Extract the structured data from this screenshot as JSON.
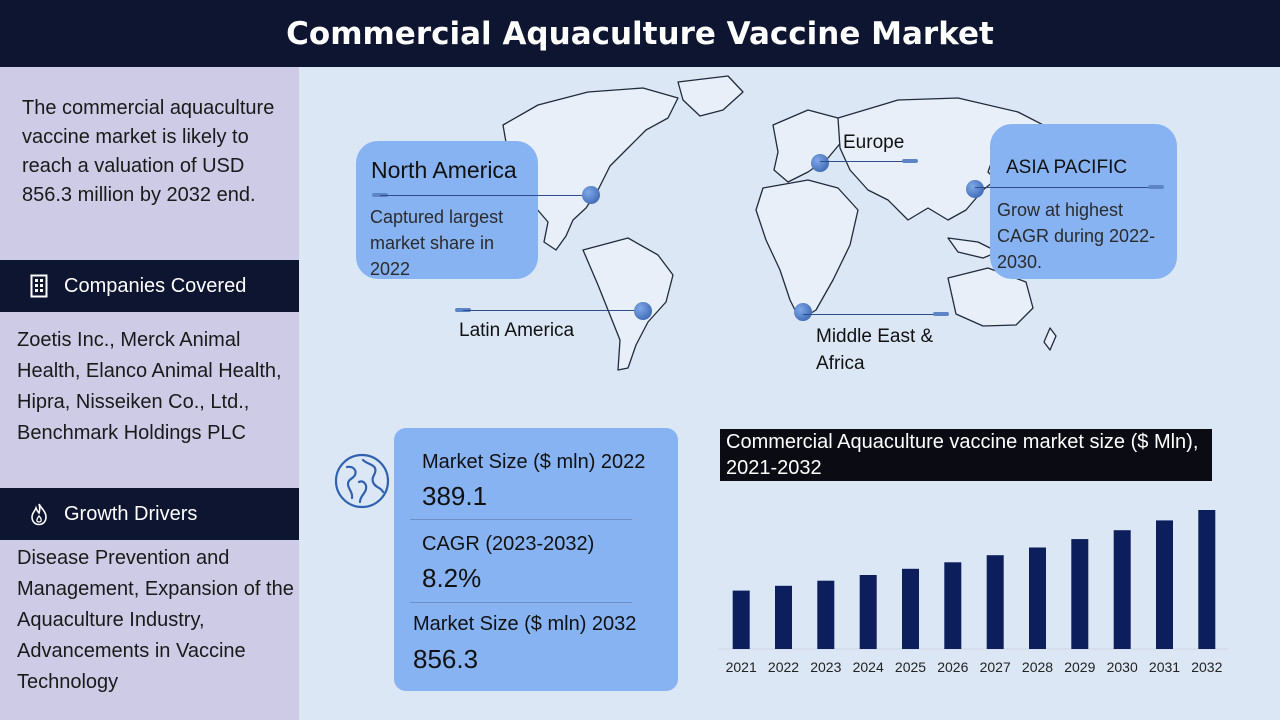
{
  "title": "Commercial Aquaculture Vaccine Market",
  "intro": "The commercial aquaculture vaccine market is likely to reach a valuation of USD 856.3 million by 2032 end.",
  "companies": {
    "header": "Companies Covered",
    "icon": "building-icon",
    "text": "Zoetis Inc., Merck Animal Health, Elanco Animal Health, Hipra, Nisseiken Co., Ltd., Benchmark Holdings PLC"
  },
  "drivers": {
    "header": "Growth Drivers",
    "icon": "flame-icon",
    "text": "Disease Prevention and Management, Expansion of the Aquaculture Industry, Advancements in Vaccine Technology"
  },
  "regions": {
    "north_america": {
      "name": "North America",
      "desc": "Captured largest market share in 2022"
    },
    "europe": {
      "name": "Europe"
    },
    "asia_pacific": {
      "name": "ASIA PACIFIC",
      "desc": "Grow at highest CAGR during 2022-2030."
    },
    "latin_america": {
      "name": "Latin America"
    },
    "mea": {
      "name": "Middle East & Africa"
    }
  },
  "metrics": {
    "icon": "globe-icon",
    "size_2022_label": "Market Size ($ mln) 2022",
    "size_2022_value": "389.1",
    "cagr_label": "CAGR (2023-2032)",
    "cagr_value": "8.2%",
    "size_2032_label": "Market Size ($ mln) 2032",
    "size_2032_value": "856.3"
  },
  "colors": {
    "dark": "#0e1530",
    "bar": "#0c1f5c",
    "callout": "#87b3f3",
    "left_panel": "#cdcbe6"
  },
  "chart_data": {
    "type": "bar",
    "title": "Commercial Aquaculture vaccine market size ($ Mln), 2021-2032",
    "categories": [
      "2021",
      "2022",
      "2023",
      "2024",
      "2025",
      "2026",
      "2027",
      "2028",
      "2029",
      "2030",
      "2031",
      "2032"
    ],
    "values": [
      360,
      389.1,
      421,
      456,
      494,
      534,
      578,
      625,
      677,
      732,
      792,
      856.3
    ],
    "ylim": [
      0,
      856.3
    ],
    "grid": false,
    "xlabel": "",
    "ylabel": ""
  }
}
